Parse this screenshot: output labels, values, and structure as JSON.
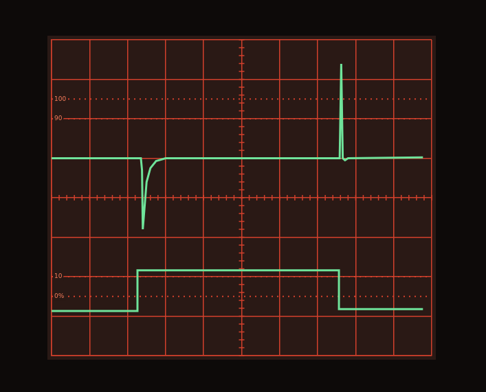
{
  "chart_data": {
    "type": "line",
    "xlim": [
      0,
      10
    ],
    "xticks": [
      0,
      1,
      2,
      3,
      4,
      5,
      6,
      7,
      8,
      9,
      10
    ],
    "ylim": [
      -4,
      4
    ],
    "yticks": [
      -4,
      -3,
      -2,
      -1,
      0,
      1,
      2,
      3,
      4
    ],
    "grid": true,
    "tick_labels": false,
    "annotations": [
      {
        "label": "100",
        "value": 2.5
      },
      {
        "label": "90",
        "value": 2
      },
      {
        "label": "10",
        "value": -2
      },
      {
        "label": "0%",
        "value": -2.5
      }
    ],
    "series": [
      {
        "color": "#6fe39a",
        "x": [
          0,
          2.35,
          2.38,
          2.4,
          2.45,
          2.5,
          2.6,
          2.75,
          3.0,
          7.58,
          7.62,
          7.66,
          7.72,
          7.8,
          9.77
        ],
        "values": [
          1.0,
          1.0,
          0.7,
          -0.8,
          -0.2,
          0.4,
          0.75,
          0.93,
          1.0,
          1.0,
          3.39,
          1.0,
          0.95,
          1.0,
          1.02
        ]
      },
      {
        "color": "#6fe39a",
        "x": [
          0,
          2.26,
          2.26,
          7.56,
          7.56,
          9.77
        ],
        "values": [
          -2.87,
          -2.87,
          -1.84,
          -1.84,
          -2.82,
          -2.82
        ]
      }
    ]
  }
}
